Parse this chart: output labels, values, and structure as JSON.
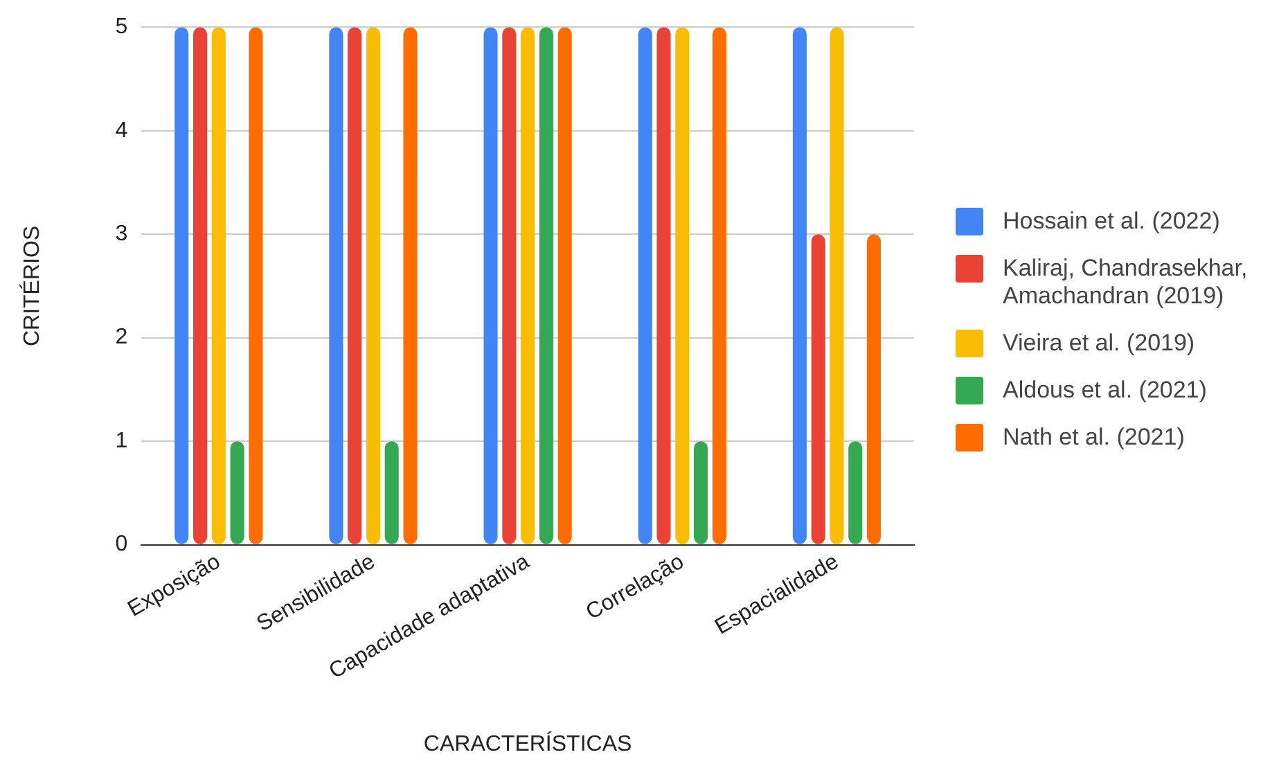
{
  "chart_data": {
    "type": "bar",
    "xlabel": "CARACTERÍSTICAS",
    "ylabel": "CRITÉRIOS",
    "categories": [
      "Exposição",
      "Sensibilidade",
      "Capacidade adaptativa",
      "Correlação",
      "Espacialidade"
    ],
    "series": [
      {
        "name": "Hossain et al. (2022)",
        "color": "#4285f4",
        "values": [
          5,
          5,
          5,
          5,
          5
        ]
      },
      {
        "name": "Kaliraj, Chandrasekhar, Amachandran (2019)",
        "color": "#ea4335",
        "values": [
          5,
          5,
          5,
          5,
          3
        ]
      },
      {
        "name": "Vieira et al. (2019)",
        "color": "#fbbc04",
        "values": [
          5,
          5,
          5,
          5,
          5
        ]
      },
      {
        "name": "Aldous et al. (2021)",
        "color": "#34a853",
        "values": [
          1,
          1,
          5,
          1,
          1
        ]
      },
      {
        "name": "Nath et al. (2021)",
        "color": "#ff6d01",
        "values": [
          5,
          5,
          5,
          5,
          3
        ]
      }
    ],
    "ylim": [
      0,
      5
    ],
    "yticks": [
      0,
      1,
      2,
      3,
      4,
      5
    ],
    "grid": "y",
    "legend": "right"
  }
}
